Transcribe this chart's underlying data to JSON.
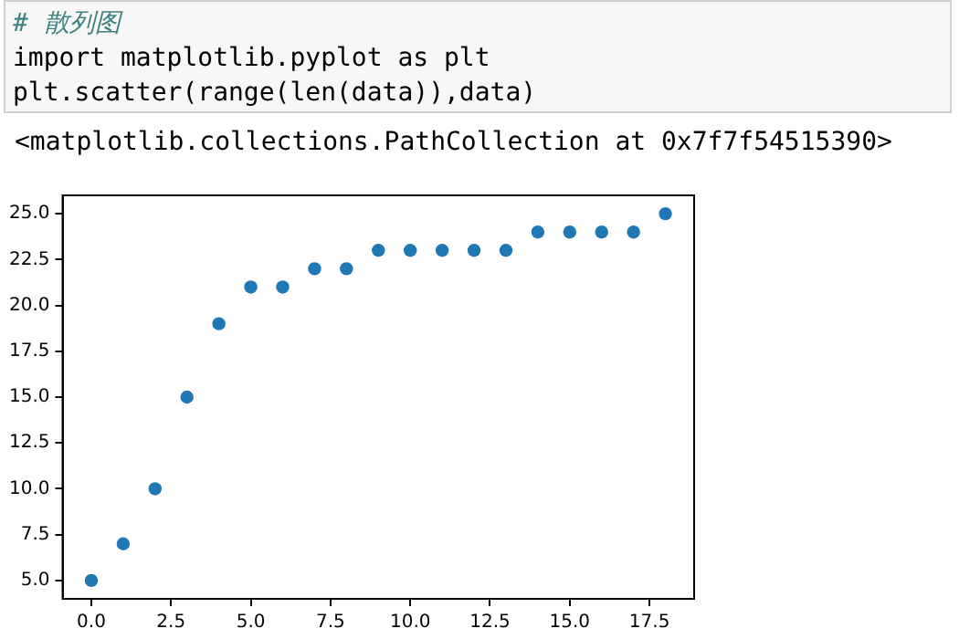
{
  "chart_data": {
    "type": "scatter",
    "annotations": [
      "# 散列图",
      "import matplotlib.pyplot as plt",
      "plt.scatter(range(len(data)),data)",
      "<matplotlib.collections.PathCollection at 0x7f7f54515390>"
    ],
    "x": [
      0,
      1,
      2,
      3,
      4,
      5,
      6,
      7,
      8,
      9,
      10,
      11,
      12,
      13,
      14,
      15,
      16,
      17,
      18
    ],
    "values": [
      5,
      7,
      10,
      15,
      19,
      21,
      21,
      22,
      22,
      23,
      23,
      23,
      23,
      23,
      24,
      24,
      24,
      24,
      25
    ],
    "color": "#1f77b4",
    "marker": "circle",
    "grid": false,
    "legend": false,
    "xlim": [
      -0.9,
      18.9
    ],
    "ylim": [
      4,
      26
    ],
    "xticks": [
      {
        "value": 0,
        "label": "0.0"
      },
      {
        "value": 2.5,
        "label": "2.5"
      },
      {
        "value": 5,
        "label": "5.0"
      },
      {
        "value": 7.5,
        "label": "7.5"
      },
      {
        "value": 10,
        "label": "10.0"
      },
      {
        "value": 12.5,
        "label": "12.5"
      },
      {
        "value": 15,
        "label": "15.0"
      },
      {
        "value": 17.5,
        "label": "17.5"
      }
    ],
    "yticks": [
      {
        "value": 5,
        "label": "5.0"
      },
      {
        "value": 7.5,
        "label": "7.5"
      },
      {
        "value": 10,
        "label": "10.0"
      },
      {
        "value": 12.5,
        "label": "12.5"
      },
      {
        "value": 15,
        "label": "15.0"
      },
      {
        "value": 17.5,
        "label": "17.5"
      },
      {
        "value": 20,
        "label": "20.0"
      },
      {
        "value": 22.5,
        "label": "22.5"
      },
      {
        "value": 25,
        "label": "25.0"
      }
    ]
  }
}
